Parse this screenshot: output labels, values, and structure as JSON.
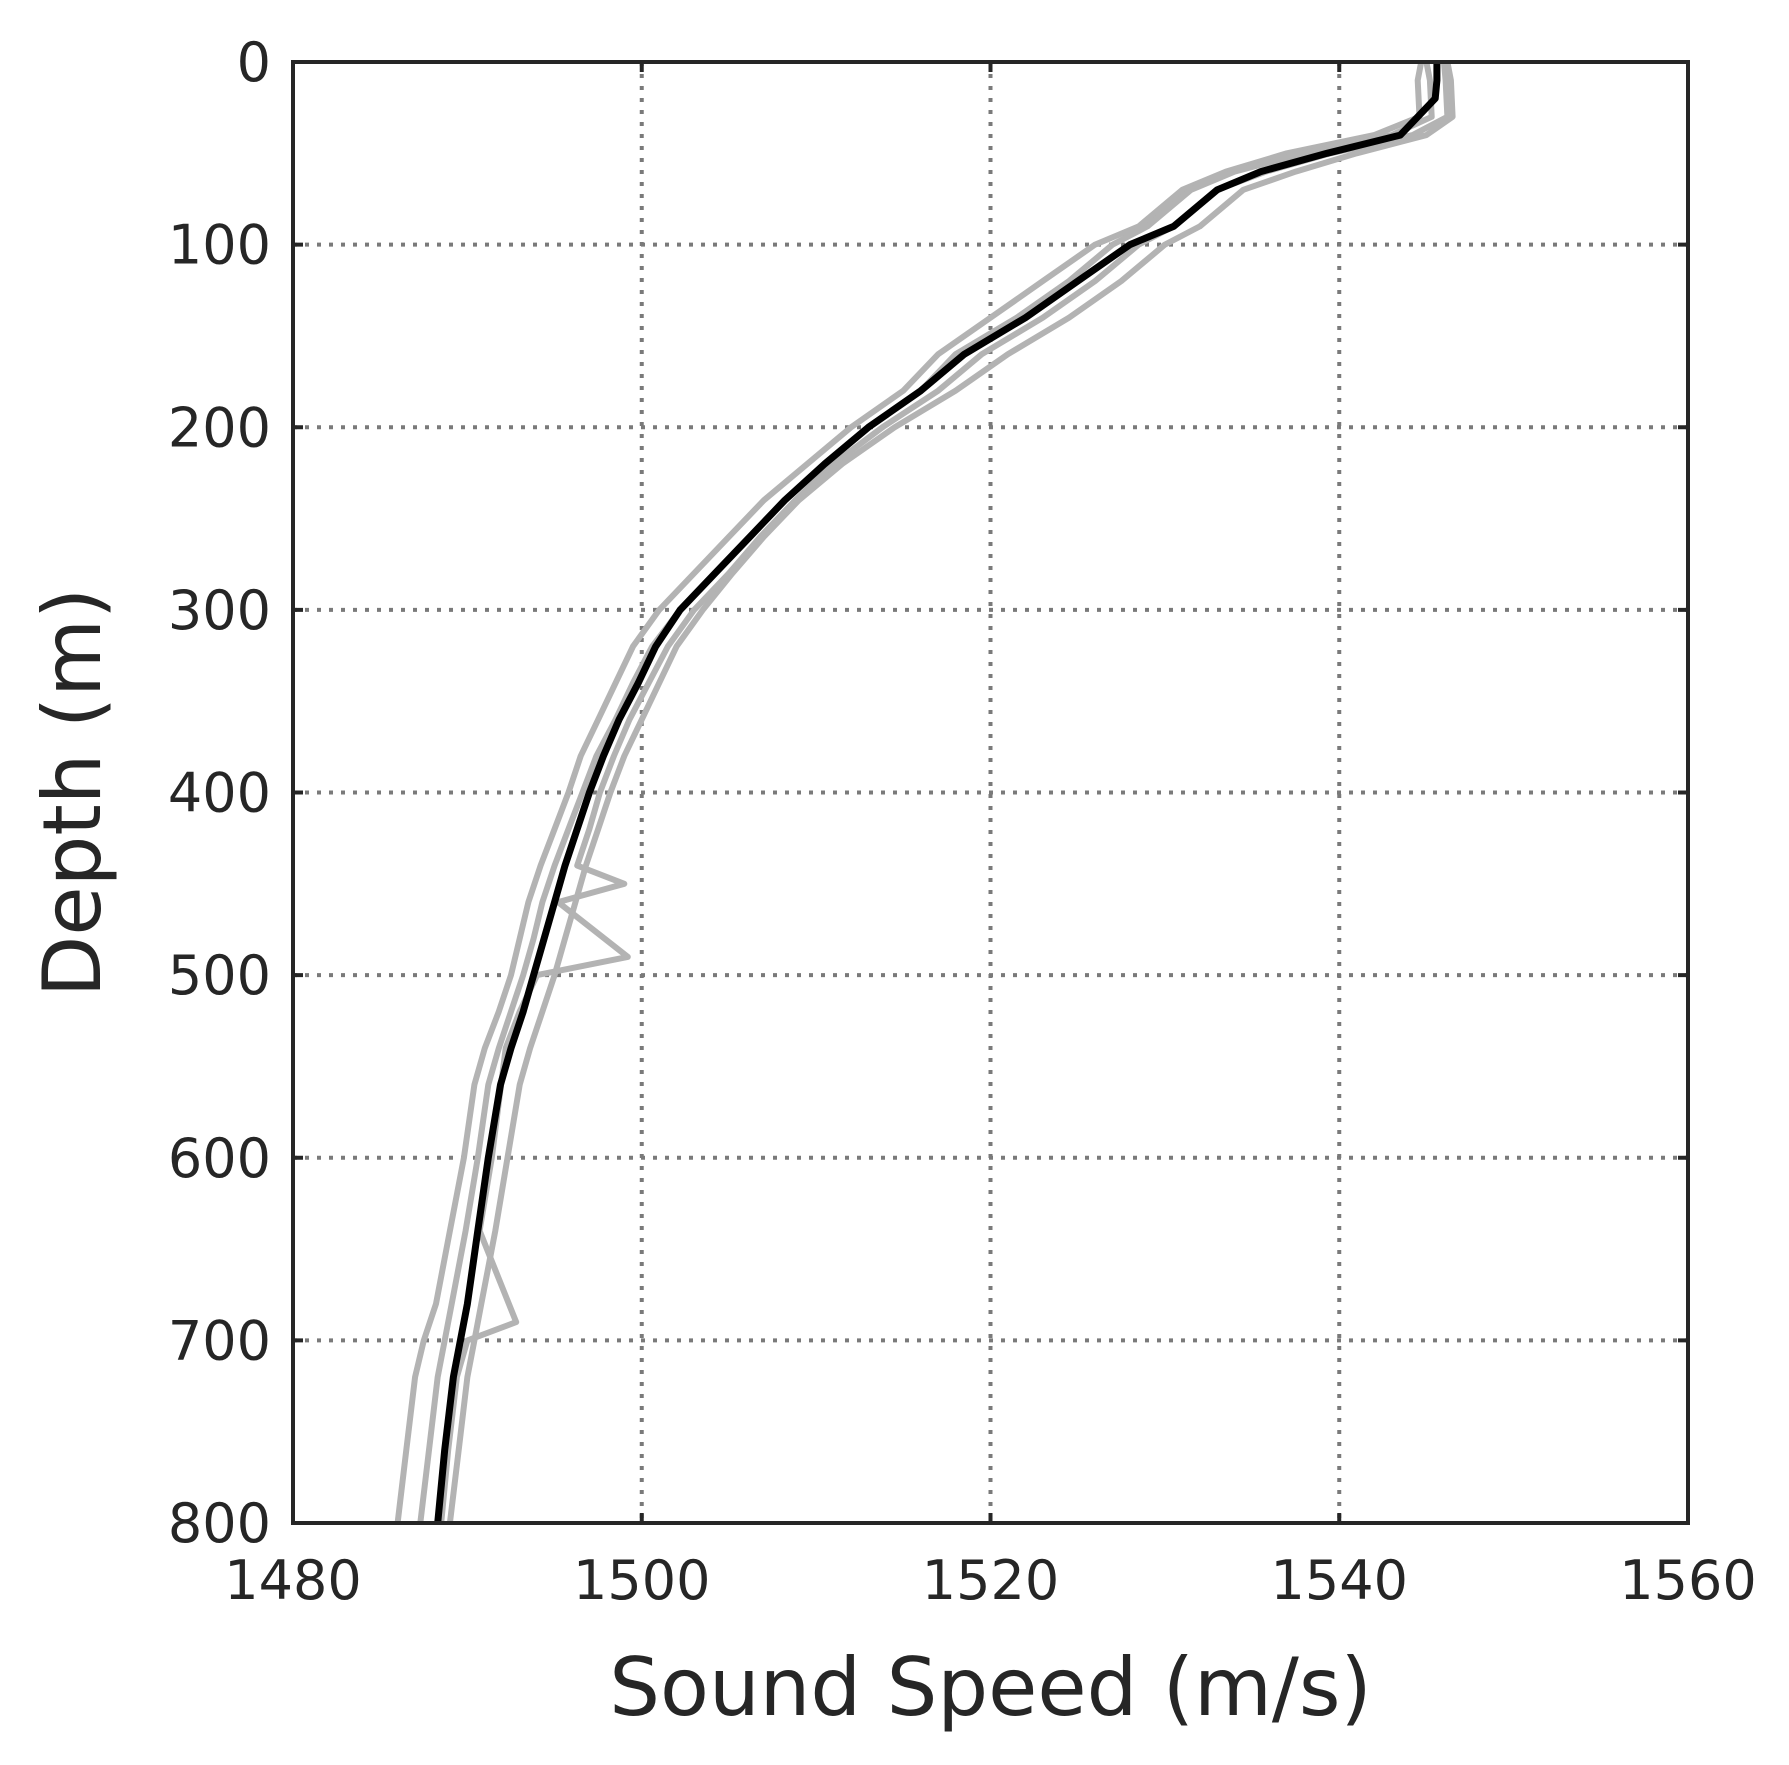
{
  "chart_data": {
    "type": "line",
    "title": "",
    "xlabel": "Sound Speed (m/s)",
    "ylabel": "Depth (m)",
    "xlim": [
      1480,
      1560
    ],
    "ylim": [
      800,
      0
    ],
    "y_inverted": true,
    "grid": true,
    "xticks": [
      "1480",
      "1500",
      "1520",
      "1540",
      "1560"
    ],
    "yticks": [
      "0",
      "100",
      "200",
      "300",
      "400",
      "500",
      "600",
      "700",
      "800"
    ],
    "colors": {
      "mean": "#000000",
      "individual": "#b3b3b3"
    },
    "series": [
      {
        "role": "individual",
        "x": [
          1544.7,
          1544.5,
          1544.6,
          1542.0,
          1537.0,
          1533.5,
          1531.0,
          1528.5,
          1526.0,
          1523.0,
          1520.0,
          1517.0,
          1515.0,
          1512.0,
          1509.5,
          1507.0,
          1505.0,
          1503.0,
          1501.0,
          1499.5,
          1498.5,
          1497.5,
          1496.5,
          1495.8,
          1495.0,
          1494.2,
          1493.5,
          1493.0,
          1492.5,
          1491.8,
          1491.0,
          1490.4,
          1489.8,
          1489.0,
          1488.2,
          1487.5,
          1487.0,
          1486.5,
          1486.0
        ],
        "y": [
          0,
          10,
          30,
          40,
          50,
          60,
          70,
          90,
          100,
          120,
          140,
          160,
          180,
          200,
          220,
          240,
          260,
          280,
          300,
          320,
          340,
          360,
          380,
          400,
          420,
          440,
          460,
          480,
          500,
          520,
          540,
          560,
          600,
          640,
          680,
          700,
          720,
          760,
          800
        ]
      },
      {
        "role": "individual",
        "x": [
          1546.2,
          1546.4,
          1546.5,
          1545.0,
          1541.0,
          1537.5,
          1534.5,
          1532.0,
          1530.0,
          1527.5,
          1524.5,
          1521.0,
          1518.0,
          1514.5,
          1511.5,
          1509.0,
          1507.0,
          1505.2,
          1503.5,
          1502.0,
          1501.0,
          1500.0,
          1499.0,
          1498.2,
          1497.5,
          1496.8,
          1496.2,
          1495.6,
          1495.0,
          1494.3,
          1493.6,
          1493.0,
          1492.3,
          1491.6,
          1490.8,
          1490.4,
          1490.0,
          1489.5,
          1489.0
        ],
        "y": [
          0,
          10,
          30,
          40,
          50,
          60,
          70,
          90,
          100,
          120,
          140,
          160,
          180,
          200,
          220,
          240,
          260,
          280,
          300,
          320,
          340,
          360,
          380,
          400,
          420,
          440,
          460,
          480,
          500,
          520,
          540,
          560,
          600,
          640,
          680,
          700,
          720,
          760,
          800
        ]
      },
      {
        "role": "individual",
        "x": [
          1545.0,
          1545.2,
          1545.3,
          1543.0,
          1538.0,
          1534.0,
          1531.5,
          1529.0,
          1527.0,
          1524.5,
          1521.5,
          1518.0,
          1516.0,
          1513.0,
          1510.5,
          1508.2,
          1506.2,
          1504.2,
          1502.2,
          1500.6,
          1499.5,
          1498.5,
          1497.4,
          1496.6,
          1495.8,
          1495.0,
          1494.3,
          1493.8,
          1493.2,
          1492.5,
          1491.8,
          1491.2,
          1490.6,
          1489.9,
          1489.1,
          1488.7,
          1488.3,
          1487.8,
          1487.3
        ],
        "y": [
          0,
          10,
          30,
          40,
          50,
          60,
          70,
          90,
          100,
          120,
          140,
          160,
          180,
          200,
          220,
          240,
          260,
          280,
          300,
          320,
          340,
          360,
          380,
          400,
          420,
          440,
          460,
          480,
          500,
          520,
          540,
          560,
          600,
          640,
          680,
          700,
          720,
          760,
          800
        ]
      },
      {
        "role": "individual",
        "x": [
          1546.0,
          1546.1,
          1546.2,
          1544.2,
          1539.5,
          1535.8,
          1533.0,
          1530.5,
          1528.5,
          1526.0,
          1523.0,
          1519.5,
          1517.0,
          1513.8,
          1511.0,
          1508.8,
          1506.8,
          1505.0,
          1503.0,
          1501.5,
          1500.4,
          1499.3,
          1498.4,
          1497.6,
          1497.0,
          1496.3,
          1499.0,
          1495.2,
          1499.2,
          1494.0,
          1493.0,
          1492.2,
          1491.4,
          1490.7,
          1492.8,
          1490.0,
          1489.4,
          1488.9,
          1488.5
        ],
        "y": [
          0,
          10,
          30,
          40,
          50,
          60,
          70,
          90,
          100,
          120,
          140,
          160,
          180,
          200,
          220,
          240,
          260,
          280,
          300,
          320,
          340,
          360,
          380,
          400,
          420,
          440,
          450,
          460,
          490,
          500,
          520,
          540,
          600,
          640,
          690,
          700,
          720,
          760,
          800
        ]
      },
      {
        "role": "mean",
        "x": [
          1545.6,
          1545.6,
          1545.5,
          1543.5,
          1539.3,
          1535.5,
          1533.0,
          1530.5,
          1528.0,
          1525.0,
          1522.0,
          1518.5,
          1516.0,
          1513.0,
          1510.5,
          1508.2,
          1506.2,
          1504.2,
          1502.2,
          1500.8,
          1499.8,
          1498.7,
          1497.8,
          1497.0,
          1496.3,
          1495.6,
          1495.0,
          1494.4,
          1493.8,
          1493.2,
          1492.5,
          1491.9,
          1491.2,
          1490.6,
          1490.0,
          1489.6,
          1489.2,
          1488.7,
          1488.3
        ],
        "y": [
          0,
          10,
          20,
          40,
          50,
          60,
          70,
          90,
          100,
          120,
          140,
          160,
          180,
          200,
          220,
          240,
          260,
          280,
          300,
          320,
          340,
          360,
          380,
          400,
          420,
          440,
          460,
          480,
          500,
          520,
          540,
          560,
          600,
          640,
          680,
          700,
          720,
          760,
          800
        ]
      }
    ]
  }
}
